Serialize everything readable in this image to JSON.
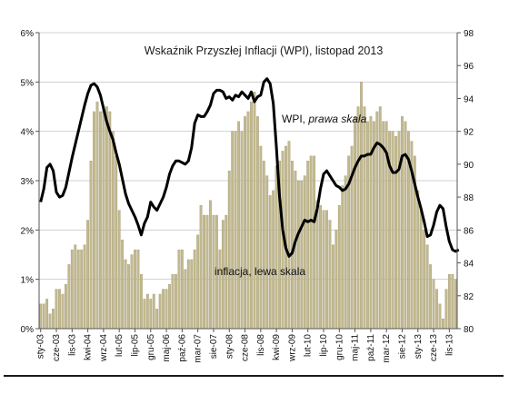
{
  "chart_data": {
    "type": "bar+line",
    "title": "Wskaźnik Przyszłej Inflacji (WPI), listopad 2013",
    "annotations": {
      "wpi": "WPI, ",
      "wpi_italic": "prawa skala",
      "inflation": "inflacja, lewa skala"
    },
    "y_left": {
      "min": 0,
      "max": 6,
      "ticks": [
        0,
        1,
        2,
        3,
        4,
        5,
        6
      ],
      "tick_labels": [
        "0%",
        "1%",
        "2%",
        "3%",
        "4%",
        "5%",
        "6%"
      ]
    },
    "y_right": {
      "min": 80,
      "max": 98,
      "ticks": [
        80,
        82,
        84,
        86,
        88,
        90,
        92,
        94,
        96,
        98
      ],
      "tick_labels": [
        "80",
        "82",
        "84",
        "86",
        "88",
        "90",
        "92",
        "94",
        "96",
        "98"
      ]
    },
    "x_labels": [
      "sty-03",
      "cze-03",
      "lis-03",
      "kwi-04",
      "wrz-04",
      "lut-05",
      "lip-05",
      "gru-05",
      "maj-06",
      "paź-06",
      "mar-07",
      "sie-07",
      "sty-08",
      "cze-08",
      "lis-08",
      "kwi-09",
      "wrz-09",
      "lut-10",
      "lip-10",
      "gru-10",
      "maj-11",
      "paź-11",
      "mar-12",
      "sie-12",
      "sty-13",
      "cze-13",
      "lis-13"
    ],
    "label_spacing_months": 5,
    "colors": {
      "bars": "#c2b98f",
      "bar_edge": "#9a906a",
      "line": "#000000",
      "grid": "#d0d0d0"
    },
    "series": [
      {
        "name": "inflacja, lewa skala",
        "kind": "bar",
        "axis": "left",
        "values": [
          0.5,
          0.5,
          0.6,
          0.3,
          0.4,
          0.8,
          0.8,
          0.7,
          0.9,
          1.3,
          1.6,
          1.7,
          1.6,
          1.6,
          1.7,
          2.2,
          3.4,
          4.4,
          4.6,
          4.4,
          4.5,
          4.5,
          4.4,
          4.0,
          3.5,
          2.4,
          1.8,
          1.4,
          1.3,
          1.5,
          1.6,
          1.6,
          1.1,
          0.6,
          0.7,
          0.6,
          0.7,
          0.4,
          0.7,
          0.8,
          0.8,
          0.9,
          1.1,
          1.1,
          1.6,
          1.6,
          1.2,
          1.4,
          1.4,
          1.6,
          1.9,
          2.5,
          2.3,
          2.3,
          2.6,
          2.3,
          2.3,
          1.6,
          2.2,
          2.3,
          3.2,
          4.0,
          4.0,
          4.2,
          4.0,
          4.3,
          4.4,
          4.6,
          4.8,
          4.3,
          3.7,
          3.4,
          3.1,
          2.7,
          2.8,
          3.3,
          3.4,
          3.6,
          3.7,
          3.8,
          3.4,
          3.2,
          3.0,
          3.0,
          3.1,
          3.4,
          3.5,
          3.5,
          2.6,
          2.5,
          2.4,
          2.4,
          2.2,
          1.7,
          2.0,
          2.5,
          2.9,
          3.1,
          3.5,
          3.7,
          4.3,
          4.5,
          5.0,
          4.5,
          4.2,
          4.3,
          4.2,
          4.4,
          4.5,
          4.2,
          4.2,
          4.0,
          4.0,
          3.9,
          4.0,
          4.3,
          4.2,
          4.0,
          3.8,
          3.5,
          2.8,
          2.4,
          2.0,
          1.7,
          1.3,
          1.0,
          0.8,
          0.5,
          0.2,
          0.8,
          1.1,
          1.1,
          1.0
        ]
      },
      {
        "name": "WPI, prawa skala",
        "kind": "line",
        "axis": "right",
        "values": [
          87.7,
          88.5,
          89.8,
          90.0,
          89.6,
          88.3,
          88.0,
          88.1,
          88.6,
          89.5,
          90.4,
          91.2,
          92.0,
          92.8,
          93.6,
          94.3,
          94.8,
          94.9,
          94.7,
          94.2,
          93.4,
          92.6,
          92.0,
          91.5,
          90.7,
          90.0,
          89.1,
          88.2,
          87.6,
          87.2,
          86.8,
          86.3,
          85.7,
          86.4,
          86.8,
          87.7,
          87.4,
          87.2,
          87.6,
          88.0,
          88.6,
          89.4,
          89.9,
          90.2,
          90.2,
          90.1,
          90.0,
          90.2,
          91.0,
          92.5,
          93.0,
          92.9,
          92.9,
          93.2,
          93.6,
          94.3,
          94.5,
          94.5,
          94.4,
          94.0,
          94.1,
          93.9,
          94.2,
          94.1,
          94.4,
          94.2,
          94.0,
          94.4,
          93.8,
          94.1,
          94.2,
          95.0,
          95.2,
          94.9,
          93.7,
          91.0,
          88.0,
          86.0,
          84.9,
          84.4,
          84.6,
          85.3,
          85.8,
          86.2,
          86.6,
          86.5,
          86.6,
          86.5,
          87.3,
          88.5,
          89.4,
          89.6,
          89.3,
          89.0,
          88.7,
          88.6,
          88.4,
          88.5,
          88.8,
          89.3,
          89.8,
          90.2,
          90.5,
          90.5,
          90.6,
          90.6,
          91.0,
          91.3,
          91.2,
          91.0,
          90.7,
          89.9,
          89.5,
          89.5,
          89.7,
          90.5,
          90.6,
          90.3,
          89.6,
          88.8,
          88.0,
          87.3,
          86.5,
          85.6,
          85.7,
          86.3,
          87.1,
          87.5,
          87.3,
          86.2,
          85.3,
          84.8,
          84.7,
          84.8
        ]
      }
    ],
    "grid": "horizontal",
    "legend": "none"
  }
}
